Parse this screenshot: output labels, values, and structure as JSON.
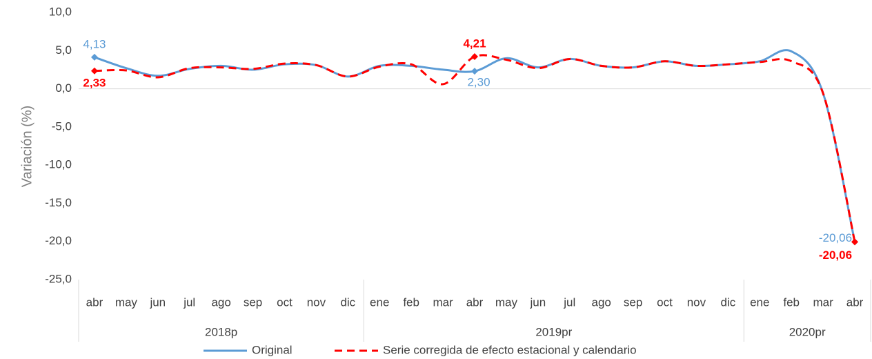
{
  "chart_data": {
    "type": "line",
    "y_label": "Variación (%)",
    "categories": [
      "abr",
      "may",
      "jun",
      "jul",
      "ago",
      "sep",
      "oct",
      "nov",
      "dic",
      "ene",
      "feb",
      "mar",
      "abr",
      "may",
      "jun",
      "jul",
      "ago",
      "sep",
      "oct",
      "nov",
      "dic",
      "ene",
      "feb",
      "mar",
      "abr"
    ],
    "x_groups": [
      {
        "label": "2018p",
        "from": 0,
        "to": 8
      },
      {
        "label": "2019pr",
        "from": 9,
        "to": 20
      },
      {
        "label": "2020pr",
        "from": 21,
        "to": 24
      }
    ],
    "series": [
      {
        "name": "Original",
        "color": "#5b9bd5",
        "dashed": false,
        "values": [
          4.13,
          2.7,
          1.7,
          2.6,
          3.0,
          2.5,
          3.2,
          3.1,
          1.6,
          3.0,
          3.0,
          2.5,
          2.3,
          4.0,
          2.8,
          3.9,
          3.0,
          2.8,
          3.6,
          3.0,
          3.2,
          3.6,
          4.9,
          -0.6,
          -20.06
        ],
        "value_labels": [
          "4,13",
          null,
          null,
          null,
          null,
          null,
          null,
          null,
          null,
          null,
          null,
          null,
          "2,30",
          null,
          null,
          null,
          null,
          null,
          null,
          null,
          null,
          null,
          null,
          null,
          "-20,06"
        ]
      },
      {
        "name": "Serie corregida de efecto estacional y calendario",
        "color": "#ff0000",
        "dashed": true,
        "values": [
          2.33,
          2.4,
          1.5,
          2.7,
          2.8,
          2.6,
          3.3,
          3.1,
          1.6,
          2.9,
          3.2,
          0.6,
          4.21,
          3.8,
          2.7,
          3.9,
          3.0,
          2.8,
          3.6,
          3.0,
          3.2,
          3.5,
          3.6,
          -0.6,
          -20.06
        ],
        "value_labels": [
          "2,33",
          null,
          null,
          null,
          null,
          null,
          null,
          null,
          null,
          null,
          null,
          null,
          "4,21",
          null,
          null,
          null,
          null,
          null,
          null,
          null,
          null,
          null,
          null,
          null,
          "-20,06"
        ]
      }
    ],
    "ylim": [
      -25,
      10
    ],
    "yticks": [
      {
        "value": -25,
        "label": "-25,0"
      },
      {
        "value": -20,
        "label": "-20,0"
      },
      {
        "value": -15,
        "label": "-15,0"
      },
      {
        "value": -10,
        "label": "-10,0"
      },
      {
        "value": -5,
        "label": "-5,0"
      },
      {
        "value": 0,
        "label": "0,0"
      },
      {
        "value": 5,
        "label": "5,0"
      },
      {
        "value": 10,
        "label": "10,0"
      }
    ],
    "legend": "bottom"
  }
}
